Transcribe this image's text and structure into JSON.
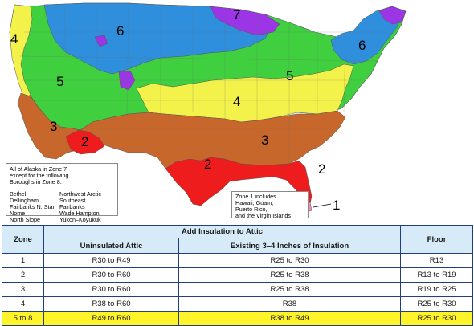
{
  "map": {
    "zone_labels": {
      "nw_4": "4",
      "west_5": "5",
      "north_6": "6",
      "north_7": "7",
      "ne_6": "6",
      "east_5": "5",
      "mid_4": "4",
      "sw_3": "3",
      "se_3": "3",
      "az_2": "2",
      "tx_2": "2",
      "fl_2": "2",
      "fl_1": "1"
    },
    "alaska_note": {
      "intro": [
        "All of Alaska in Zone 7",
        "except for the following",
        "Boroughs in Zone 8:"
      ],
      "col1": [
        "Bethel",
        "Dellingham",
        "Fairbanks N. Star",
        "Nome",
        "North Slope"
      ],
      "col2": [
        "Northwest Arctic",
        "Southeast Fairbanks",
        "Wade Hampton",
        "Yukon–Koyukuk"
      ]
    },
    "zone1_note": [
      "Zone 1 includes",
      "Hawaii, Guam,",
      "Puerto Rico,",
      "and the Virgin Islands"
    ],
    "colors": {
      "zone1": "#f58ab4",
      "zone2": "#ee1c1c",
      "zone3": "#c8672b",
      "zone4": "#f2f24a",
      "zone5": "#3fcf3f",
      "zone6": "#2f8fdc",
      "zone7": "#9b35e6"
    }
  },
  "table": {
    "zone_header": "Zone",
    "add_header": "Add Insulation to Attic",
    "floor_header": "Floor",
    "uninsulated_header": "Uninsulated Attic",
    "existing_header": "Existing 3–4 Inches of Insulation",
    "rows": [
      {
        "zone": "1",
        "uninsulated": "R30 to R49",
        "existing": "R25 to R30",
        "floor": "R13"
      },
      {
        "zone": "2",
        "uninsulated": "R30 to R60",
        "existing": "R25 to R38",
        "floor": "R13 to R19"
      },
      {
        "zone": "3",
        "uninsulated": "R30 to R60",
        "existing": "R25 to R38",
        "floor": "R19 to R25"
      },
      {
        "zone": "4",
        "uninsulated": "R38 to R60",
        "existing": "R38",
        "floor": "R25 to R30"
      },
      {
        "zone": "5 to 8",
        "uninsulated": "R49 to R60",
        "existing": "R38 to R49",
        "floor": "R25 to R30"
      }
    ],
    "highlight_color": "#fff32a",
    "header_color": "#d6ebf7"
  }
}
